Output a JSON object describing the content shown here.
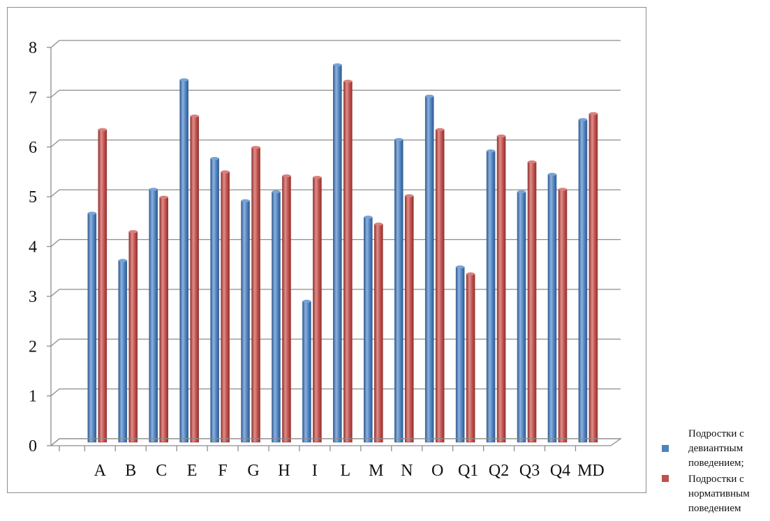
{
  "chart_data": {
    "type": "bar",
    "categories": [
      "A",
      "B",
      "C",
      "E",
      "F",
      "G",
      "H",
      "I",
      "L",
      "M",
      "N",
      "O",
      "Q1",
      "Q2",
      "Q3",
      "Q4",
      "MD"
    ],
    "series": [
      {
        "name": "Подростки с девиантным поведением;",
        "color": "#4f81bd",
        "values": [
          4.6,
          3.65,
          5.08,
          7.28,
          5.7,
          4.85,
          5.03,
          2.83,
          7.58,
          4.52,
          6.08,
          6.95,
          3.52,
          5.85,
          5.03,
          5.38,
          6.48
        ]
      },
      {
        "name": "Подростки с нормативным поведением",
        "color": "#c0504d",
        "values": [
          6.28,
          4.23,
          4.92,
          6.55,
          5.43,
          5.92,
          5.35,
          5.32,
          7.25,
          4.38,
          4.95,
          6.28,
          3.38,
          6.15,
          5.63,
          5.08,
          6.6
        ]
      }
    ],
    "title": "",
    "xlabel": "",
    "ylabel": "",
    "ylim": [
      0,
      8
    ],
    "yticks": [
      "0",
      "1",
      "2",
      "3",
      "4",
      "5",
      "6",
      "7",
      "8"
    ],
    "grid": true,
    "legend": "right-bottom"
  }
}
